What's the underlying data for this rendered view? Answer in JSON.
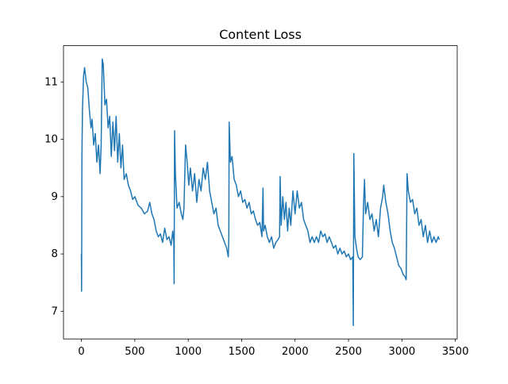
{
  "chart_data": {
    "type": "line",
    "title": "Content Loss",
    "x": [
      0,
      2,
      5,
      10,
      20,
      30,
      45,
      60,
      75,
      90,
      100,
      115,
      130,
      145,
      160,
      175,
      185,
      195,
      205,
      220,
      235,
      250,
      265,
      280,
      295,
      310,
      325,
      340,
      355,
      370,
      385,
      400,
      420,
      440,
      460,
      480,
      500,
      530,
      560,
      590,
      620,
      640,
      660,
      680,
      700,
      720,
      740,
      760,
      780,
      800,
      820,
      840,
      855,
      865,
      868,
      872,
      880,
      895,
      915,
      935,
      950,
      960,
      975,
      990,
      1005,
      1020,
      1040,
      1060,
      1080,
      1100,
      1120,
      1140,
      1160,
      1180,
      1200,
      1220,
      1240,
      1260,
      1280,
      1300,
      1320,
      1340,
      1360,
      1375,
      1380,
      1383,
      1395,
      1410,
      1430,
      1450,
      1470,
      1490,
      1510,
      1530,
      1550,
      1570,
      1590,
      1610,
      1630,
      1650,
      1670,
      1690,
      1700,
      1705,
      1720,
      1740,
      1760,
      1780,
      1800,
      1820,
      1840,
      1855,
      1860,
      1870,
      1885,
      1900,
      1915,
      1930,
      1945,
      1960,
      1980,
      2000,
      2020,
      2040,
      2060,
      2080,
      2100,
      2120,
      2140,
      2160,
      2180,
      2200,
      2220,
      2240,
      2260,
      2280,
      2300,
      2320,
      2340,
      2360,
      2380,
      2400,
      2420,
      2440,
      2460,
      2480,
      2500,
      2520,
      2540,
      2545,
      2550,
      2560,
      2575,
      2590,
      2610,
      2630,
      2640,
      2650,
      2660,
      2680,
      2700,
      2720,
      2740,
      2760,
      2780,
      2800,
      2820,
      2830,
      2850,
      2870,
      2890,
      2910,
      2930,
      2950,
      2970,
      2990,
      3010,
      3030,
      3040,
      3048,
      3060,
      3080,
      3100,
      3120,
      3140,
      3160,
      3180,
      3200,
      3220,
      3240,
      3260,
      3280,
      3300,
      3320,
      3340,
      3350
    ],
    "series": [
      {
        "color": "#1f77b4",
        "values": [
          8.0,
          7.35,
          9.7,
          10.5,
          11.1,
          11.25,
          11.0,
          10.9,
          10.5,
          10.2,
          10.35,
          9.9,
          10.1,
          9.6,
          9.9,
          9.4,
          9.9,
          11.4,
          11.3,
          10.6,
          10.7,
          10.2,
          10.4,
          9.7,
          10.3,
          9.8,
          10.4,
          9.6,
          10.1,
          9.5,
          9.9,
          9.3,
          9.4,
          9.2,
          9.1,
          8.95,
          9.0,
          8.85,
          8.8,
          8.7,
          8.75,
          8.9,
          8.7,
          8.6,
          8.4,
          8.3,
          8.35,
          8.2,
          8.45,
          8.25,
          8.3,
          8.15,
          8.4,
          8.2,
          7.48,
          10.15,
          9.4,
          8.8,
          8.9,
          8.7,
          8.6,
          8.8,
          9.9,
          9.6,
          9.2,
          9.5,
          9.1,
          9.4,
          8.9,
          9.3,
          9.1,
          9.5,
          9.3,
          9.6,
          9.1,
          8.9,
          8.7,
          8.8,
          8.5,
          8.4,
          8.3,
          8.2,
          8.1,
          7.95,
          8.3,
          10.3,
          9.6,
          9.7,
          9.3,
          9.2,
          9.0,
          9.1,
          8.9,
          8.95,
          8.8,
          8.9,
          8.7,
          8.75,
          8.6,
          8.5,
          8.55,
          8.3,
          9.15,
          8.4,
          8.5,
          8.3,
          8.2,
          8.3,
          8.1,
          8.2,
          8.25,
          8.3,
          9.35,
          8.5,
          9.0,
          8.6,
          8.9,
          8.4,
          8.8,
          8.5,
          9.1,
          8.7,
          9.1,
          8.8,
          8.9,
          8.6,
          8.5,
          8.4,
          8.2,
          8.3,
          8.2,
          8.3,
          8.2,
          8.4,
          8.3,
          8.35,
          8.2,
          8.3,
          8.2,
          8.1,
          8.15,
          8.0,
          8.1,
          8.0,
          8.05,
          7.95,
          8.0,
          7.9,
          7.95,
          6.75,
          9.75,
          8.3,
          8.1,
          7.95,
          7.9,
          7.95,
          8.8,
          9.3,
          8.7,
          8.9,
          8.6,
          8.7,
          8.4,
          8.6,
          8.3,
          8.8,
          9.0,
          9.2,
          8.9,
          8.7,
          8.4,
          8.2,
          8.1,
          7.95,
          7.8,
          7.75,
          7.65,
          7.6,
          7.55,
          9.4,
          9.1,
          8.9,
          8.95,
          8.7,
          8.8,
          8.5,
          8.6,
          8.3,
          8.5,
          8.2,
          8.4,
          8.2,
          8.3,
          8.2,
          8.3,
          8.25
        ]
      }
    ],
    "xlim": [
      -167.5,
      3517.5
    ],
    "xticks": [
      0,
      500,
      1000,
      1500,
      2000,
      2500,
      3000,
      3500
    ],
    "ylim": [
      6.5175,
      11.6325
    ],
    "yticks": [
      7,
      8,
      9,
      10,
      11
    ],
    "grid": false
  }
}
